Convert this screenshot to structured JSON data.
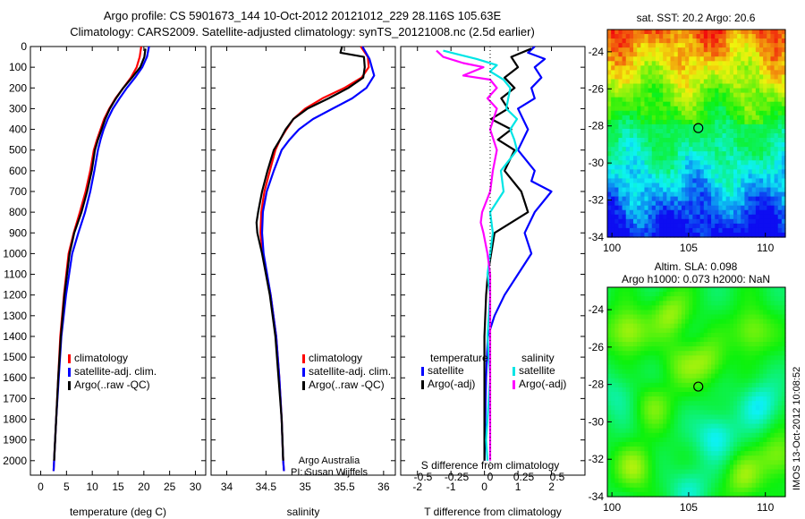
{
  "header": {
    "title_line1": "Argo profile: CS 5901673_144 10-Oct-2012 20121012_229 28.116S 105.63E",
    "title_line2": "Climatology: CARS2009. Satellite-adjusted climatology: synTS_20121008.nc (2.5d earlier)"
  },
  "colors": {
    "climatology": "#ff0000",
    "satellite": "#0000ff",
    "argo": "#000000",
    "salinity_satellite": "#00e5e5",
    "salinity_argo": "#ff00ff"
  },
  "chart_data": [
    {
      "type": "line",
      "panel": "temperature",
      "xlabel": "temperature (deg C)",
      "x_ticks": [
        "0",
        "5",
        "10",
        "15",
        "20",
        "25",
        "30"
      ],
      "xlim": [
        -2,
        32
      ],
      "y_ticks": [
        "0",
        "100",
        "200",
        "300",
        "400",
        "500",
        "600",
        "700",
        "800",
        "900",
        "1000",
        "1100",
        "1200",
        "1300",
        "1400",
        "1500",
        "1600",
        "1700",
        "1800",
        "1900",
        "2000"
      ],
      "ylim": [
        2070,
        0
      ],
      "legend": [
        "climatology",
        "satellite-adj. clim.",
        "Argo(..raw -QC)"
      ],
      "series": [
        {
          "name": "climatology",
          "color": "#ff0000",
          "points": [
            [
              19.5,
              0
            ],
            [
              19.2,
              50
            ],
            [
              18.6,
              100
            ],
            [
              17.5,
              150
            ],
            [
              16.0,
              200
            ],
            [
              14.5,
              250
            ],
            [
              13.3,
              300
            ],
            [
              12.3,
              350
            ],
            [
              11.6,
              400
            ],
            [
              10.9,
              450
            ],
            [
              10.3,
              500
            ],
            [
              9.6,
              600
            ],
            [
              8.7,
              700
            ],
            [
              7.6,
              800
            ],
            [
              6.4,
              900
            ],
            [
              5.4,
              1000
            ],
            [
              4.5,
              1200
            ],
            [
              3.8,
              1400
            ],
            [
              3.4,
              1600
            ],
            [
              3.0,
              1800
            ],
            [
              2.6,
              2000
            ],
            [
              2.5,
              2050
            ]
          ]
        },
        {
          "name": "satellite-adj. clim.",
          "color": "#0000ff",
          "points": [
            [
              21.0,
              0
            ],
            [
              20.6,
              50
            ],
            [
              19.7,
              100
            ],
            [
              18.3,
              150
            ],
            [
              16.7,
              200
            ],
            [
              15.3,
              250
            ],
            [
              14.0,
              300
            ],
            [
              13.0,
              350
            ],
            [
              12.2,
              400
            ],
            [
              11.6,
              450
            ],
            [
              11.1,
              500
            ],
            [
              10.4,
              600
            ],
            [
              9.6,
              700
            ],
            [
              8.6,
              800
            ],
            [
              7.3,
              900
            ],
            [
              6.1,
              1000
            ],
            [
              4.9,
              1200
            ],
            [
              4.0,
              1400
            ],
            [
              3.5,
              1600
            ],
            [
              3.0,
              1800
            ],
            [
              2.6,
              2000
            ],
            [
              2.5,
              2050
            ]
          ]
        },
        {
          "name": "Argo(..raw -QC)",
          "color": "#000000",
          "points": [
            [
              20.3,
              10
            ],
            [
              20.1,
              50
            ],
            [
              19.3,
              100
            ],
            [
              17.7,
              150
            ],
            [
              16.0,
              200
            ],
            [
              14.6,
              250
            ],
            [
              13.4,
              300
            ],
            [
              12.5,
              350
            ],
            [
              11.8,
              400
            ],
            [
              11.1,
              450
            ],
            [
              10.5,
              500
            ],
            [
              9.9,
              600
            ],
            [
              9.0,
              700
            ],
            [
              7.9,
              800
            ],
            [
              6.5,
              900
            ],
            [
              5.6,
              1000
            ],
            [
              4.6,
              1200
            ],
            [
              3.9,
              1400
            ],
            [
              3.4,
              1600
            ],
            [
              3.0,
              1800
            ],
            [
              2.6,
              2000
            ]
          ]
        }
      ]
    },
    {
      "type": "line",
      "panel": "salinity",
      "xlabel": "salinity",
      "x_ticks": [
        "34",
        "34.5",
        "35",
        "35.5",
        "36"
      ],
      "xlim": [
        33.8,
        36.15
      ],
      "ylim": [
        2070,
        0
      ],
      "legend": [
        "climatology",
        "satellite-adj. clim.",
        "Argo(..raw -QC)"
      ],
      "annotation": [
        "Argo Australia",
        "PI: Susan Wijffels"
      ],
      "series": [
        {
          "name": "climatology",
          "color": "#ff0000",
          "points": [
            [
              35.71,
              0
            ],
            [
              35.8,
              50
            ],
            [
              35.81,
              100
            ],
            [
              35.72,
              150
            ],
            [
              35.5,
              200
            ],
            [
              35.22,
              250
            ],
            [
              35.0,
              300
            ],
            [
              34.85,
              350
            ],
            [
              34.76,
              400
            ],
            [
              34.68,
              450
            ],
            [
              34.62,
              500
            ],
            [
              34.55,
              600
            ],
            [
              34.48,
              700
            ],
            [
              34.44,
              800
            ],
            [
              34.43,
              900
            ],
            [
              34.46,
              1000
            ],
            [
              34.56,
              1200
            ],
            [
              34.63,
              1400
            ],
            [
              34.67,
              1600
            ],
            [
              34.7,
              1800
            ],
            [
              34.72,
              2000
            ],
            [
              34.73,
              2050
            ]
          ]
        },
        {
          "name": "satellite-adj. clim.",
          "color": "#0000ff",
          "points": [
            [
              35.73,
              0
            ],
            [
              35.82,
              60
            ],
            [
              35.88,
              140
            ],
            [
              35.78,
              200
            ],
            [
              35.6,
              250
            ],
            [
              35.35,
              300
            ],
            [
              35.1,
              350
            ],
            [
              34.92,
              400
            ],
            [
              34.8,
              450
            ],
            [
              34.7,
              500
            ],
            [
              34.6,
              600
            ],
            [
              34.51,
              700
            ],
            [
              34.46,
              800
            ],
            [
              34.45,
              900
            ],
            [
              34.47,
              1000
            ],
            [
              34.56,
              1200
            ],
            [
              34.63,
              1400
            ],
            [
              34.67,
              1600
            ],
            [
              34.7,
              1800
            ],
            [
              34.72,
              2000
            ],
            [
              34.73,
              2050
            ]
          ]
        },
        {
          "name": "Argo(..raw -QC)",
          "color": "#000000",
          "points": [
            [
              35.47,
              0
            ],
            [
              35.45,
              30
            ],
            [
              35.75,
              50
            ],
            [
              35.76,
              100
            ],
            [
              35.74,
              150
            ],
            [
              35.55,
              200
            ],
            [
              35.3,
              250
            ],
            [
              35.03,
              300
            ],
            [
              34.85,
              350
            ],
            [
              34.75,
              400
            ],
            [
              34.68,
              450
            ],
            [
              34.6,
              500
            ],
            [
              34.52,
              600
            ],
            [
              34.45,
              700
            ],
            [
              34.4,
              800
            ],
            [
              34.38,
              850
            ],
            [
              34.39,
              900
            ],
            [
              34.45,
              1000
            ],
            [
              34.55,
              1200
            ],
            [
              34.62,
              1400
            ],
            [
              34.66,
              1600
            ],
            [
              34.7,
              1800
            ],
            [
              34.72,
              2000
            ]
          ]
        }
      ]
    },
    {
      "type": "line",
      "panel": "difference",
      "xlabel": "T difference from climatology",
      "x_ticks": [
        "-2",
        "-1",
        "0",
        "1",
        "2"
      ],
      "xlim": [
        -2.5,
        3.0
      ],
      "top_axis_label": "S difference from climatology",
      "top_ticks": [
        "-0.5",
        "-0.25",
        "0",
        "0.25",
        "0.5"
      ],
      "legend_group_t": "temperature",
      "legend_group_s": "salinity",
      "legend_t": [
        "satellite",
        "Argo(-adj)"
      ],
      "legend_s": [
        "satellite",
        "Argo(-adj)"
      ],
      "ylim": [
        2070,
        0
      ],
      "series": [
        {
          "name": "temperature satellite",
          "color": "#0000ff",
          "points": [
            [
              1.5,
              0
            ],
            [
              1.3,
              30
            ],
            [
              1.8,
              60
            ],
            [
              1.5,
              100
            ],
            [
              1.7,
              150
            ],
            [
              1.4,
              200
            ],
            [
              1.5,
              250
            ],
            [
              1.0,
              300
            ],
            [
              1.3,
              400
            ],
            [
              1.0,
              500
            ],
            [
              1.5,
              600
            ],
            [
              1.4,
              650
            ],
            [
              2.0,
              700
            ],
            [
              1.5,
              800
            ],
            [
              1.2,
              900
            ],
            [
              1.4,
              1000
            ],
            [
              1.0,
              1100
            ],
            [
              0.6,
              1200
            ],
            [
              0.3,
              1300
            ],
            [
              0.1,
              1400
            ],
            [
              0.05,
              1600
            ],
            [
              0.0,
              2000
            ]
          ]
        },
        {
          "name": "temperature Argo(-adj)",
          "color": "#000000",
          "points": [
            [
              1.4,
              10
            ],
            [
              0.8,
              50
            ],
            [
              1.0,
              100
            ],
            [
              0.6,
              150
            ],
            [
              0.9,
              200
            ],
            [
              0.5,
              250
            ],
            [
              0.7,
              300
            ],
            [
              0.2,
              350
            ],
            [
              0.8,
              400
            ],
            [
              0.4,
              450
            ],
            [
              0.9,
              500
            ],
            [
              0.6,
              600
            ],
            [
              1.1,
              700
            ],
            [
              1.3,
              800
            ],
            [
              0.8,
              850
            ],
            [
              0.3,
              900
            ],
            [
              0.2,
              1000
            ],
            [
              0.1,
              1100
            ],
            [
              0.05,
              1200
            ],
            [
              0.0,
              1400
            ],
            [
              0.0,
              2000
            ]
          ]
        },
        {
          "name": "salinity satellite",
          "color": "#00e5e5",
          "points": [
            [
              -0.35,
              20
            ],
            [
              -0.1,
              60
            ],
            [
              0.05,
              90
            ],
            [
              0.0,
              120
            ],
            [
              0.1,
              160
            ],
            [
              0.15,
              200
            ],
            [
              0.12,
              300
            ],
            [
              0.2,
              350
            ],
            [
              0.15,
              400
            ],
            [
              0.18,
              450
            ],
            [
              0.2,
              500
            ],
            [
              0.08,
              600
            ],
            [
              0.1,
              700
            ],
            [
              0.0,
              800
            ],
            [
              0.02,
              900
            ],
            [
              0.0,
              1000
            ],
            [
              -0.02,
              1100
            ],
            [
              0.0,
              1200
            ],
            [
              -0.02,
              1400
            ],
            [
              0.0,
              1600
            ],
            [
              -0.02,
              1800
            ],
            [
              -0.03,
              1900
            ],
            [
              -0.02,
              2000
            ]
          ]
        },
        {
          "name": "salinity Argo(-adj)",
          "color": "#ff00ff",
          "points": [
            [
              -0.4,
              20
            ],
            [
              -0.35,
              50
            ],
            [
              -0.2,
              80
            ],
            [
              -0.05,
              100
            ],
            [
              -0.2,
              140
            ],
            [
              0.0,
              160
            ],
            [
              0.05,
              200
            ],
            [
              -0.02,
              250
            ],
            [
              0.05,
              300
            ],
            [
              0.0,
              400
            ],
            [
              0.05,
              500
            ],
            [
              0.02,
              600
            ],
            [
              0.0,
              700
            ],
            [
              -0.06,
              800
            ],
            [
              -0.07,
              850
            ],
            [
              -0.05,
              900
            ],
            [
              -0.02,
              1000
            ],
            [
              0.0,
              1100
            ],
            [
              0.0,
              1300
            ],
            [
              0.0,
              1600
            ],
            [
              0.0,
              2000
            ]
          ]
        }
      ]
    },
    {
      "type": "heatmap",
      "panel": "sst_map",
      "title": "sat. SST: 20.2 Argo: 20.6",
      "x_ticks": [
        "100",
        "105",
        "110"
      ],
      "y_ticks": [
        "-24",
        "-26",
        "-28",
        "-30",
        "-32",
        "-34"
      ],
      "xlim": [
        99.7,
        111.3
      ],
      "ylim": [
        -34.0,
        -22.8
      ],
      "marker": [
        105.63,
        -28.116
      ]
    },
    {
      "type": "heatmap",
      "panel": "sla_map",
      "title_line1": "Altim. SLA: 0.098",
      "title_line2": "Argo h1000: 0.073 h2000: NaN",
      "x_ticks": [
        "100",
        "105",
        "110"
      ],
      "y_ticks": [
        "-24",
        "-26",
        "-28",
        "-30",
        "-32",
        "-34"
      ],
      "xlim": [
        99.7,
        111.3
      ],
      "ylim": [
        -34.0,
        -22.8
      ],
      "marker": [
        105.63,
        -28.116
      ]
    }
  ],
  "footer": {
    "stamp": "IMOS 13-Oct-2012 10:08:52"
  }
}
